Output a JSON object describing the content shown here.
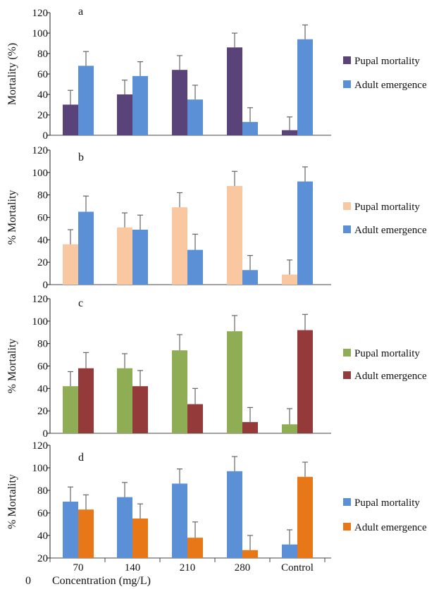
{
  "figure": {
    "xlabel": "Concentration (mg/L)",
    "stray_zero": "0"
  },
  "chart_data": [
    {
      "panel": "a",
      "type": "bar",
      "ylabel": "Mortality (%)",
      "categories": [
        "70",
        "140",
        "210",
        "280",
        "Control"
      ],
      "yticks": [
        "0",
        "20",
        "40",
        "60",
        "80",
        "100",
        "120"
      ],
      "ylim": [
        0,
        120
      ],
      "series": [
        {
          "name": "Pupal mortality",
          "color": "#5a4378",
          "values": [
            30,
            40,
            64,
            86,
            5
          ],
          "errors": [
            14,
            14,
            14,
            14,
            13
          ]
        },
        {
          "name": "Adult emergence",
          "color": "#5b8fd6",
          "values": [
            68,
            58,
            35,
            13,
            94
          ],
          "errors": [
            14,
            14,
            14,
            14,
            14
          ]
        }
      ],
      "legend": "right",
      "grid": false
    },
    {
      "panel": "b",
      "type": "bar",
      "ylabel": "% Mortality",
      "categories": [
        "70",
        "140",
        "210",
        "280",
        "Control"
      ],
      "yticks": [
        "0",
        "20",
        "40",
        "60",
        "80",
        "100",
        "120"
      ],
      "ylim": [
        0,
        120
      ],
      "series": [
        {
          "name": "Pupal mortality",
          "color": "#fac8a0",
          "values": [
            36,
            51,
            69,
            88,
            9
          ],
          "errors": [
            13,
            13,
            13,
            13,
            13
          ]
        },
        {
          "name": "Adult emergence",
          "color": "#5b8fd6",
          "values": [
            65,
            49,
            31,
            13,
            92
          ],
          "errors": [
            14,
            13,
            14,
            13,
            13
          ]
        }
      ],
      "legend": "right",
      "grid": false
    },
    {
      "panel": "c",
      "type": "bar",
      "ylabel": "% Mortality",
      "categories": [
        "70",
        "140",
        "210",
        "280",
        "Control"
      ],
      "yticks": [
        "0",
        "20",
        "40",
        "60",
        "80",
        "100",
        "120"
      ],
      "ylim": [
        0,
        120
      ],
      "series": [
        {
          "name": "Pupal mortality",
          "color": "#8fad55",
          "values": [
            42,
            58,
            74,
            91,
            8
          ],
          "errors": [
            13,
            13,
            14,
            14,
            14
          ]
        },
        {
          "name": "Adult emergence",
          "color": "#953a3a",
          "values": [
            58,
            42,
            26,
            10,
            92
          ],
          "errors": [
            14,
            14,
            14,
            13,
            14
          ]
        }
      ],
      "legend": "right",
      "grid": false
    },
    {
      "panel": "d",
      "type": "bar",
      "ylabel": "% Mortality",
      "categories": [
        "70",
        "140",
        "210",
        "280",
        "Control"
      ],
      "yticks": [
        "20",
        "40",
        "60",
        "80",
        "100",
        "120"
      ],
      "ylim": [
        20,
        120
      ],
      "series": [
        {
          "name": "Pupal mortality",
          "color": "#5b8fd6",
          "values": [
            70,
            74,
            86,
            97,
            32
          ],
          "errors": [
            13,
            13,
            13,
            13,
            13
          ]
        },
        {
          "name": "Adult emergence",
          "color": "#e87817",
          "values": [
            63,
            55,
            38,
            27,
            92
          ],
          "errors": [
            13,
            13,
            14,
            13,
            13
          ]
        }
      ],
      "legend": "right",
      "grid": false
    }
  ]
}
